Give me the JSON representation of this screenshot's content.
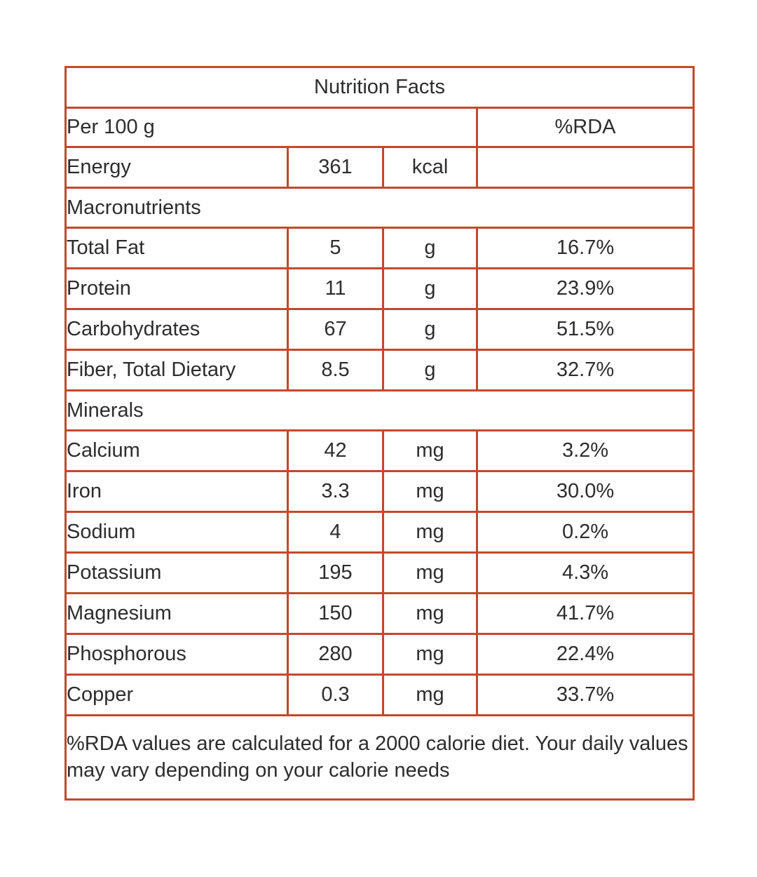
{
  "table": {
    "title": "Nutrition Facts",
    "header": {
      "serving": "Per 100 g",
      "rda": "%RDA"
    },
    "energy": {
      "label": "Energy",
      "value": "361",
      "unit": "kcal",
      "rda": ""
    },
    "sections": [
      {
        "name": "Macronutrients",
        "rows": [
          {
            "label": "Total Fat",
            "value": "5",
            "unit": "g",
            "rda": "16.7%"
          },
          {
            "label": "Protein",
            "value": "11",
            "unit": "g",
            "rda": "23.9%"
          },
          {
            "label": "Carbohydrates",
            "value": "67",
            "unit": "g",
            "rda": "51.5%"
          },
          {
            "label": "Fiber, Total Dietary",
            "value": "8.5",
            "unit": "g",
            "rda": "32.7%"
          }
        ]
      },
      {
        "name": "Minerals",
        "rows": [
          {
            "label": "Calcium",
            "value": "42",
            "unit": "mg",
            "rda": "3.2%"
          },
          {
            "label": "Iron",
            "value": "3.3",
            "unit": "mg",
            "rda": "30.0%"
          },
          {
            "label": "Sodium",
            "value": "4",
            "unit": "mg",
            "rda": "0.2%"
          },
          {
            "label": "Potassium",
            "value": "195",
            "unit": "mg",
            "rda": "4.3%"
          },
          {
            "label": "Magnesium",
            "value": "150",
            "unit": "mg",
            "rda": "41.7%"
          },
          {
            "label": "Phosphorous",
            "value": "280",
            "unit": "mg",
            "rda": "22.4%"
          },
          {
            "label": "Copper",
            "value": "0.3",
            "unit": "mg",
            "rda": "33.7%"
          }
        ]
      }
    ],
    "footnote": "%RDA values are calculated for a 2000 calorie diet. Your daily values may vary depending on your calorie needs",
    "colors": {
      "border": "#c2492c",
      "text": "#2d2d2d",
      "background": "#ffffff"
    }
  }
}
